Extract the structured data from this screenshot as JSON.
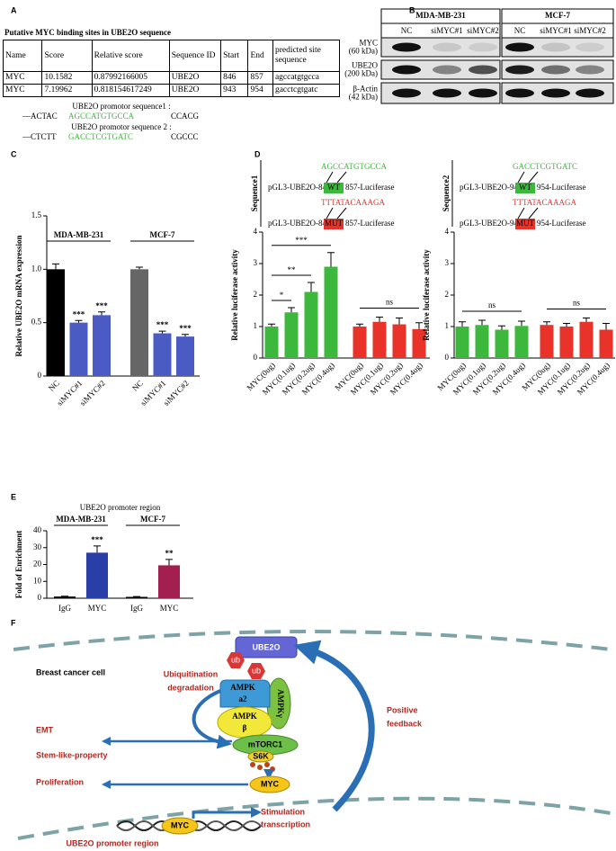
{
  "panel_labels": [
    "A",
    "B",
    "C",
    "D",
    "E",
    "F"
  ],
  "table": {
    "title": "Putative MYC binding sites in UBE2O sequence",
    "header": [
      "Name",
      "Score",
      "Relative score",
      "Sequence ID",
      "Start",
      "End",
      "predicted site sequence"
    ],
    "rows": [
      [
        "MYC",
        "10.1582",
        "0.87992166005",
        "UBE2O",
        "846",
        "857",
        "agccatgtgcca"
      ],
      [
        "MYC",
        "7.19962",
        "0.818154617249",
        "UBE2O",
        "943",
        "954",
        "gacctcgtgatc"
      ]
    ]
  },
  "promoter": [
    {
      "label": "UBE2O promotor sequence1 :",
      "left": "—ACTAC",
      "site": "AGCCATGTGCCA",
      "right": "CCACG"
    },
    {
      "label": "UBE2O promotor sequence 2 :",
      "left": "—CTCTT",
      "site": "GACCTCGTGATC",
      "right": "CGCCC"
    }
  ],
  "blot": {
    "groups": [
      "MDA-MB-231",
      "MCF-7"
    ],
    "lanes": [
      "NC",
      "siMYC#1",
      "siMYC#2",
      "NC",
      "siMYC#1",
      "siMYC#2"
    ],
    "rows": [
      {
        "name": "MYC",
        "size": "(60 kDa)"
      },
      {
        "name": "UBE2O",
        "size": "(200 kDa)"
      },
      {
        "name": "β-Actin",
        "size": "(42 kDa)"
      }
    ]
  },
  "chart_data": [
    {
      "type": "bar",
      "ylabel": "Relative UBE2O mRNA expression",
      "ylim": [
        0,
        1.5
      ],
      "yticks": [
        0,
        0.5,
        {
          "value": 1,
          "label": "1.0"
        },
        1.5
      ],
      "xlabel_rotation": 45,
      "brackets": false,
      "groups": [
        {
          "name": "MDA-MB-231",
          "categories": [
            "NC",
            "siMYC#1",
            "siMYC#2"
          ],
          "values": [
            1.0,
            0.5,
            0.57
          ],
          "errors": [
            0.05,
            0.02,
            0.03
          ],
          "colors": [
            "#000000",
            "#4a5cc4",
            "#4a5cc4"
          ],
          "significance": [
            null,
            "***",
            "***"
          ]
        },
        {
          "name": "MCF-7",
          "categories": [
            "NC",
            "siMYC#1",
            "siMYC#2"
          ],
          "values": [
            1.0,
            0.4,
            0.37
          ],
          "errors": [
            0.02,
            0.02,
            0.02
          ],
          "colors": [
            "#666666",
            "#4a5cc4",
            "#4a5cc4"
          ],
          "significance": [
            null,
            "***",
            "***"
          ]
        }
      ]
    },
    {
      "type": "bar",
      "ylabel": "Relative luciferase activity",
      "ylim": [
        0,
        4
      ],
      "yticks": [
        0,
        1,
        2,
        3,
        4
      ],
      "xlabel_rotation": 45,
      "brackets": true,
      "construct": {
        "label": "Sequence1",
        "name": "pGL3-UBE2O-846",
        "wt_seq": "AGCCATGTGCCA",
        "wt": "WT",
        "mut_seq": "TTTATACAAAGA",
        "mut": "MUT",
        "reporter": "857-Luciferase"
      },
      "groups": [
        {
          "categories": [
            "MYC(0ug)",
            "MYC(0.1ug)",
            "MYC(0.2ug)",
            "MYC(0.4ug)"
          ],
          "values": [
            1.0,
            1.45,
            2.1,
            2.9
          ],
          "errors": [
            0.08,
            0.15,
            0.3,
            0.45
          ],
          "color": "#3cb83c",
          "significance": [
            null,
            "*",
            "**",
            "***"
          ]
        },
        {
          "categories": [
            "MYC(0ug)",
            "MYC(0.1ug)",
            "MYC(0.2ug)",
            "MYC(0.4ug)"
          ],
          "values": [
            1.0,
            1.15,
            1.07,
            0.92
          ],
          "errors": [
            0.08,
            0.15,
            0.2,
            0.2
          ],
          "color": "#e8322a",
          "comparison": "ns"
        }
      ]
    },
    {
      "type": "bar",
      "ylabel": "Relative luciferase activity",
      "ylim": [
        0,
        4
      ],
      "yticks": [
        0,
        1,
        2,
        3,
        4
      ],
      "xlabel_rotation": 45,
      "brackets": true,
      "construct": {
        "label": "Sequence2",
        "name": "pGL3-UBE2O-943",
        "wt_seq": "GACCTCGTGATC",
        "wt": "WT",
        "mut_seq": "TTTATACAAAGA",
        "mut": "MUT",
        "reporter": "954-Luciferase"
      },
      "groups": [
        {
          "categories": [
            "MYC(0ug)",
            "MYC(0.1ug)",
            "MYC(0.2ug)",
            "MYC(0.4ug)"
          ],
          "values": [
            1.0,
            1.05,
            0.9,
            1.02
          ],
          "errors": [
            0.15,
            0.15,
            0.12,
            0.15
          ],
          "color": "#3cb83c",
          "comparison": "ns"
        },
        {
          "categories": [
            "MYC(0ug)",
            "MYC(0.1ug)",
            "MYC(0.2ug)",
            "MYC(0.4ug)"
          ],
          "values": [
            1.05,
            1.0,
            1.15,
            0.9
          ],
          "errors": [
            0.1,
            0.1,
            0.12,
            0.2
          ],
          "color": "#e8322a",
          "comparison": "ns"
        }
      ]
    },
    {
      "type": "bar",
      "title": "UBE2O promoter region",
      "ylabel": "Fold of Enrichment",
      "ylim": [
        0,
        40
      ],
      "yticks": [
        0,
        10,
        20,
        30,
        40
      ],
      "xlabel_rotation": 0,
      "brackets": false,
      "groups": [
        {
          "name": "MDA-MB-231",
          "categories": [
            "IgG",
            "MYC"
          ],
          "values": [
            1,
            27
          ],
          "errors": [
            0.2,
            4
          ],
          "colors": [
            "#000000",
            "#2a3ea8"
          ],
          "significance": [
            null,
            "***"
          ]
        },
        {
          "name": "MCF-7",
          "categories": [
            "IgG",
            "MYC"
          ],
          "values": [
            0.8,
            19.5
          ],
          "errors": [
            0.2,
            3.5
          ],
          "colors": [
            "#000000",
            "#a31f4f"
          ],
          "significance": [
            null,
            "**"
          ]
        }
      ]
    }
  ],
  "diagram": {
    "cell": "Breast cancer cell",
    "ube2o": "UBE2O",
    "ub": [
      "ub",
      "ub"
    ],
    "degradation": [
      "Ubiquitination",
      "degradation"
    ],
    "ampk_a2": [
      "AMPK",
      "a2"
    ],
    "ampk_g": "AMPKγ",
    "ampk_b": [
      "AMPK",
      "β"
    ],
    "mtorc1": "mTORC1",
    "s6k": "S6K",
    "myc": "MYC",
    "feedback": [
      "Positive",
      "feedback"
    ],
    "outputs": [
      "EMT",
      "Stem-like-property",
      "Proliferation"
    ],
    "stimulation": [
      "Stimulation",
      "transcription"
    ],
    "promoter_myc": "MYC",
    "promoter": "UBE2O promoter region"
  }
}
